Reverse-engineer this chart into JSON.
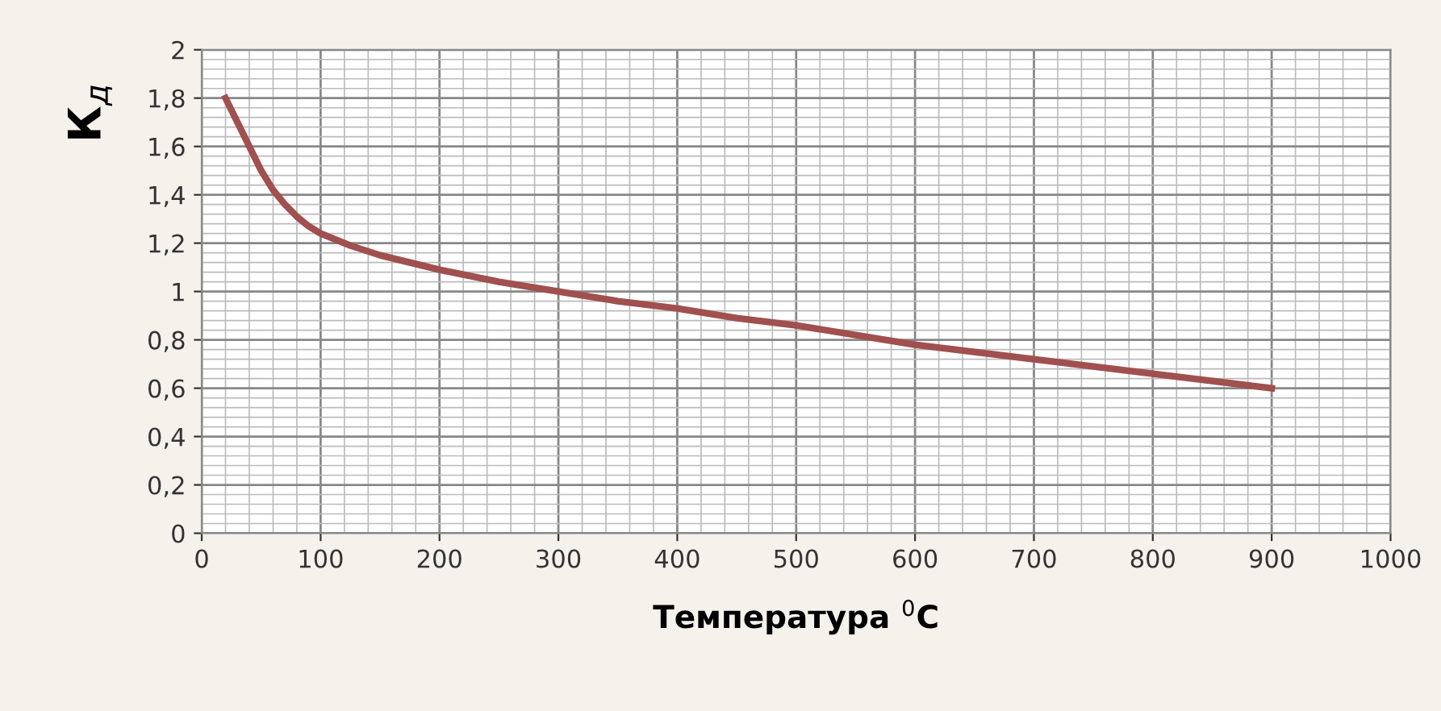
{
  "chart_data": {
    "type": "line",
    "xlabel": "Температура $^{0}$C",
    "ylabel": "К$_{д}$",
    "x": [
      20,
      30,
      40,
      50,
      60,
      70,
      80,
      90,
      100,
      125,
      150,
      200,
      250,
      300,
      350,
      400,
      450,
      500,
      550,
      600,
      650,
      700,
      750,
      800,
      850,
      900
    ],
    "series": [
      {
        "color": "#a0504f",
        "values": [
          1.8,
          1.7,
          1.6,
          1.5,
          1.42,
          1.36,
          1.31,
          1.27,
          1.24,
          1.19,
          1.15,
          1.09,
          1.04,
          1.0,
          0.96,
          0.93,
          0.89,
          0.86,
          0.82,
          0.78,
          0.75,
          0.72,
          0.69,
          0.66,
          0.63,
          0.6
        ]
      }
    ],
    "xlim": [
      0,
      1000
    ],
    "xticks": [
      0,
      100,
      200,
      300,
      400,
      500,
      600,
      700,
      800,
      900,
      1000
    ],
    "ylim": [
      0,
      2
    ],
    "yticks": [
      0,
      {
        "value": 0.2,
        "label": "0,2"
      },
      {
        "value": 0.4,
        "label": "0,4"
      },
      {
        "value": 0.6,
        "label": "0,6"
      },
      {
        "value": 0.8,
        "label": "0,8"
      },
      1,
      {
        "value": 1.2,
        "label": "1,2"
      },
      {
        "value": 1.4,
        "label": "1,4"
      },
      {
        "value": 1.6,
        "label": "1,6"
      },
      {
        "value": 1.8,
        "label": "1,8"
      },
      2
    ],
    "grid": true,
    "marker": "none",
    "line_style": "solid"
  }
}
